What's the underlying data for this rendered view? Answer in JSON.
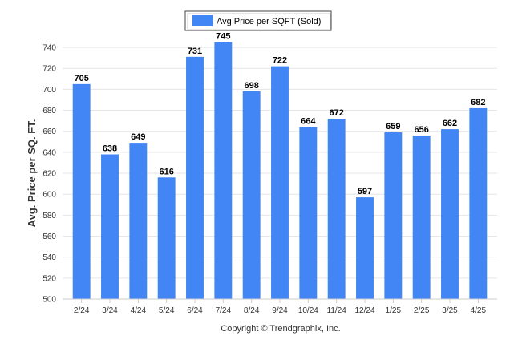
{
  "chart_data": {
    "type": "bar",
    "categories": [
      "2/24",
      "3/24",
      "4/24",
      "5/24",
      "6/24",
      "7/24",
      "8/24",
      "9/24",
      "10/24",
      "11/24",
      "12/24",
      "1/25",
      "2/25",
      "3/25",
      "4/25"
    ],
    "series": [
      {
        "name": "Avg Price per SQFT (Sold)",
        "values": [
          705,
          638,
          649,
          616,
          731,
          745,
          698,
          722,
          664,
          672,
          597,
          659,
          656,
          662,
          682
        ],
        "color": "#4285f4"
      }
    ],
    "ylabel": "Avg. Price per SQ. FT.",
    "xlabel": "",
    "ylim": [
      500,
      750
    ],
    "yticks": [
      500,
      520,
      540,
      560,
      580,
      600,
      620,
      640,
      660,
      680,
      700,
      720,
      740
    ],
    "grid": true,
    "legend_position": "top-center",
    "data_labels": true
  },
  "footer": {
    "copyright": "Copyright © Trendgraphix, Inc."
  },
  "colors": {
    "bar": "#4285f4",
    "grid": "#e6e6e6",
    "axis": "#cccccc"
  }
}
